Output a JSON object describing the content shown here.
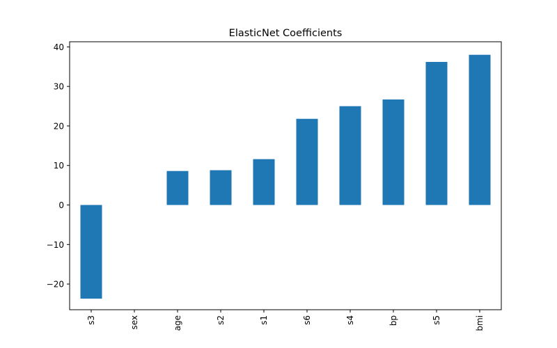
{
  "chart_data": {
    "type": "bar",
    "title": "ElasticNet Coefficients",
    "xlabel": "",
    "ylabel": "",
    "categories": [
      "s3",
      "sex",
      "age",
      "s2",
      "s1",
      "s6",
      "s4",
      "bp",
      "s5",
      "bmi"
    ],
    "values": [
      -23.7,
      0,
      8.6,
      8.8,
      11.6,
      21.8,
      25.0,
      26.7,
      36.2,
      38.0
    ],
    "ylim": [
      -26.5,
      41.3
    ],
    "yticks": [
      -20,
      -10,
      0,
      10,
      20,
      30,
      40
    ],
    "ytick_labels": [
      "−20",
      "−10",
      "0",
      "10",
      "20",
      "30",
      "40"
    ],
    "bar_color": "#1f77b4",
    "grid": false,
    "legend": "none",
    "x_tick_rotation": "vertical"
  }
}
